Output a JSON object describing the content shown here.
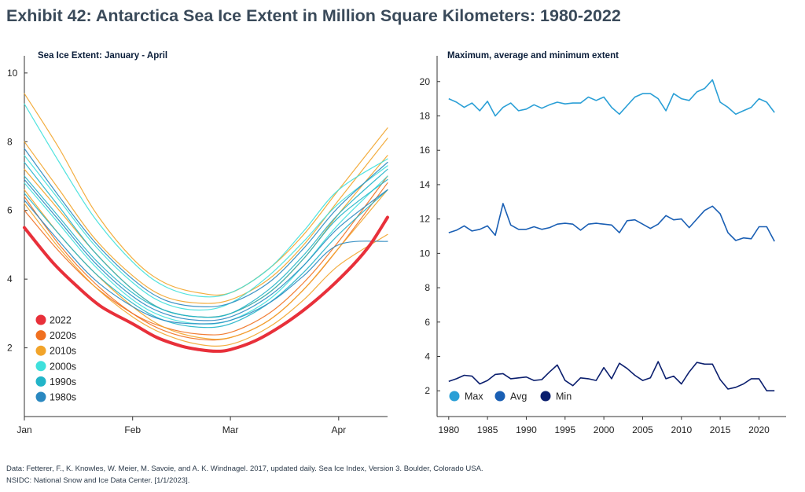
{
  "title": "Exhibit 42: Antarctica Sea Ice Extent in Million Square Kilometers: 1980-2022",
  "source_lines": [
    "Data: Fetterer, F., K. Knowles, W. Meier, M. Savoie, and A. K. Windnagel. 2017, updated daily. Sea Ice Index, Version 3. Boulder, Colorado USA.",
    "NSIDC: National Snow and Ice Data Center. [1/1/2023]."
  ],
  "chart_data": [
    {
      "type": "line",
      "title": "Sea Ice Extent: January - April",
      "xlabel": "",
      "ylabel": "",
      "x_ticks": [
        "Jan",
        "Feb",
        "Mar",
        "Apr"
      ],
      "x_tick_days": [
        0,
        31,
        59,
        90
      ],
      "xlim": [
        0,
        104
      ],
      "ylim": [
        0,
        10.5
      ],
      "y_ticks": [
        2,
        4,
        6,
        8,
        10
      ],
      "legend_position": "bottom-left",
      "legend": [
        {
          "label": "2022",
          "color": "#e8303a"
        },
        {
          "label": "2020s",
          "color": "#f07020"
        },
        {
          "label": "2010s",
          "color": "#f2a42a"
        },
        {
          "label": "2000s",
          "color": "#3fe0dc"
        },
        {
          "label": "1990s",
          "color": "#22b4c8"
        },
        {
          "label": "1980s",
          "color": "#2a88c0"
        }
      ],
      "series": [
        {
          "name": "2022",
          "color": "#e8303a",
          "x": [
            0,
            8,
            15,
            22,
            31,
            38,
            45,
            50,
            55,
            59,
            66,
            73,
            80,
            87,
            94,
            99,
            104
          ],
          "y": [
            5.5,
            4.5,
            3.8,
            3.2,
            2.7,
            2.3,
            2.05,
            1.95,
            1.9,
            1.95,
            2.2,
            2.6,
            3.1,
            3.7,
            4.4,
            5.0,
            5.8
          ]
        },
        {
          "name": "2020s",
          "color": "#f07020",
          "x": [
            0,
            10,
            20,
            31,
            40,
            50,
            59,
            70,
            80,
            90,
            104
          ],
          "y": [
            6.4,
            5.0,
            3.9,
            3.0,
            2.5,
            2.25,
            2.3,
            2.8,
            3.7,
            4.9,
            6.8
          ]
        },
        {
          "name": "2020s",
          "color": "#f07020",
          "x": [
            0,
            10,
            20,
            31,
            40,
            50,
            59,
            70,
            80,
            90,
            104
          ],
          "y": [
            6.0,
            4.8,
            3.8,
            3.0,
            2.6,
            2.4,
            2.45,
            3.0,
            3.9,
            5.1,
            7.0
          ]
        },
        {
          "name": "2010s",
          "color": "#f2a42a",
          "x": [
            0,
            10,
            20,
            31,
            40,
            50,
            59,
            70,
            80,
            90,
            104
          ],
          "y": [
            9.4,
            7.8,
            6.0,
            4.6,
            3.9,
            3.6,
            3.6,
            4.3,
            5.3,
            6.6,
            8.4
          ]
        },
        {
          "name": "2010s",
          "color": "#f2a42a",
          "x": [
            0,
            10,
            20,
            31,
            40,
            50,
            59,
            70,
            80,
            90,
            104
          ],
          "y": [
            8.0,
            6.6,
            5.2,
            4.1,
            3.5,
            3.3,
            3.4,
            4.0,
            5.0,
            6.3,
            8.1
          ]
        },
        {
          "name": "2010s",
          "color": "#f2a42a",
          "x": [
            0,
            10,
            20,
            31,
            40,
            50,
            59,
            70,
            80,
            90,
            104
          ],
          "y": [
            7.2,
            6.0,
            4.8,
            3.7,
            3.1,
            2.9,
            3.0,
            3.6,
            4.6,
            5.9,
            7.6
          ]
        },
        {
          "name": "2010s",
          "color": "#f2a42a",
          "x": [
            0,
            10,
            20,
            31,
            40,
            50,
            59,
            70,
            80,
            90,
            104
          ],
          "y": [
            6.6,
            5.3,
            4.2,
            3.2,
            2.6,
            2.3,
            2.3,
            2.8,
            3.7,
            4.9,
            6.6
          ]
        },
        {
          "name": "2010s",
          "color": "#f2a42a",
          "x": [
            0,
            10,
            20,
            31,
            40,
            50,
            59,
            70,
            80,
            90,
            104
          ],
          "y": [
            6.2,
            4.9,
            3.8,
            2.9,
            2.4,
            2.1,
            2.1,
            2.6,
            3.4,
            4.4,
            5.3
          ]
        },
        {
          "name": "2000s",
          "color": "#3fe0dc",
          "x": [
            0,
            10,
            20,
            31,
            40,
            50,
            59,
            70,
            80,
            90,
            104
          ],
          "y": [
            9.1,
            7.4,
            5.8,
            4.5,
            3.8,
            3.5,
            3.6,
            4.3,
            5.4,
            6.6,
            7.5
          ]
        },
        {
          "name": "2000s",
          "color": "#3fe0dc",
          "x": [
            0,
            10,
            20,
            31,
            40,
            50,
            59,
            70,
            80,
            90,
            104
          ],
          "y": [
            7.6,
            6.3,
            5.0,
            3.9,
            3.3,
            3.1,
            3.3,
            4.1,
            5.1,
            6.2,
            7.3
          ]
        },
        {
          "name": "2000s",
          "color": "#3fe0dc",
          "x": [
            0,
            10,
            20,
            31,
            40,
            50,
            59,
            70,
            80,
            90,
            104
          ],
          "y": [
            6.8,
            5.6,
            4.4,
            3.4,
            2.9,
            2.7,
            2.8,
            3.4,
            4.4,
            5.6,
            7.0
          ]
        },
        {
          "name": "1990s",
          "color": "#22b4c8",
          "x": [
            0,
            10,
            20,
            31,
            40,
            50,
            59,
            70,
            80,
            90,
            104
          ],
          "y": [
            7.4,
            6.1,
            4.8,
            3.7,
            3.1,
            2.9,
            3.0,
            3.7,
            4.7,
            5.9,
            7.2
          ]
        },
        {
          "name": "1990s",
          "color": "#22b4c8",
          "x": [
            0,
            10,
            20,
            31,
            40,
            50,
            59,
            70,
            80,
            90,
            104
          ],
          "y": [
            6.5,
            5.3,
            4.2,
            3.3,
            2.8,
            2.6,
            2.7,
            3.3,
            4.2,
            5.3,
            6.6
          ]
        },
        {
          "name": "1990s",
          "color": "#22b4c8",
          "x": [
            0,
            10,
            20,
            31,
            40,
            50,
            59,
            70,
            80,
            90,
            104
          ],
          "y": [
            7.0,
            5.8,
            4.6,
            3.6,
            3.1,
            2.9,
            3.0,
            3.6,
            4.6,
            5.8,
            6.9
          ]
        },
        {
          "name": "1980s",
          "color": "#2a88c0",
          "x": [
            0,
            10,
            20,
            31,
            40,
            50,
            59,
            70,
            80,
            90,
            104
          ],
          "y": [
            6.9,
            5.7,
            4.5,
            3.5,
            3.0,
            2.8,
            2.9,
            3.5,
            4.4,
            5.5,
            6.6
          ]
        },
        {
          "name": "1980s",
          "color": "#2a88c0",
          "x": [
            0,
            10,
            20,
            31,
            40,
            50,
            59,
            70,
            80,
            90,
            104
          ],
          "y": [
            6.3,
            5.1,
            4.0,
            3.2,
            2.8,
            2.7,
            2.8,
            3.3,
            4.1,
            5.0,
            5.1
          ]
        },
        {
          "name": "1980s",
          "color": "#2a88c0",
          "x": [
            0,
            10,
            20,
            31,
            40,
            50,
            59,
            70,
            80,
            90,
            104
          ],
          "y": [
            7.8,
            6.4,
            5.1,
            4.0,
            3.4,
            3.2,
            3.3,
            3.9,
            4.9,
            6.1,
            7.4
          ]
        }
      ]
    },
    {
      "type": "line",
      "title": "Maximum, average and minimum extent",
      "xlabel": "",
      "ylabel": "",
      "xlim": [
        1978.5,
        2023.5
      ],
      "ylim": [
        0.5,
        21.5
      ],
      "x_ticks": [
        1980,
        1985,
        1990,
        1995,
        2000,
        2005,
        2010,
        2015,
        2020
      ],
      "y_ticks": [
        2,
        4,
        6,
        8,
        10,
        12,
        14,
        16,
        18,
        20
      ],
      "legend_position": "bottom-left",
      "x": [
        1980,
        1981,
        1982,
        1983,
        1984,
        1985,
        1986,
        1987,
        1988,
        1989,
        1990,
        1991,
        1992,
        1993,
        1994,
        1995,
        1996,
        1997,
        1998,
        1999,
        2000,
        2001,
        2002,
        2003,
        2004,
        2005,
        2006,
        2007,
        2008,
        2009,
        2010,
        2011,
        2012,
        2013,
        2014,
        2015,
        2016,
        2017,
        2018,
        2019,
        2020,
        2021,
        2022
      ],
      "series": [
        {
          "name": "Max",
          "color": "#2a9fd6",
          "values": [
            19.0,
            18.8,
            18.5,
            18.75,
            18.3,
            18.85,
            18.0,
            18.5,
            18.75,
            18.3,
            18.4,
            18.65,
            18.45,
            18.65,
            18.8,
            18.7,
            18.75,
            18.75,
            19.1,
            18.9,
            19.1,
            18.5,
            18.1,
            18.6,
            19.1,
            19.3,
            19.3,
            19.0,
            18.3,
            19.3,
            19.0,
            18.9,
            19.4,
            19.6,
            20.1,
            18.8,
            18.5,
            18.1,
            18.3,
            18.5,
            19.0,
            18.8,
            18.2
          ]
        },
        {
          "name": "Avg",
          "color": "#1a5fb4",
          "values": [
            11.2,
            11.35,
            11.6,
            11.3,
            11.4,
            11.6,
            11.05,
            12.9,
            11.65,
            11.4,
            11.4,
            11.55,
            11.4,
            11.5,
            11.7,
            11.75,
            11.7,
            11.35,
            11.7,
            11.75,
            11.7,
            11.65,
            11.2,
            11.9,
            11.95,
            11.7,
            11.45,
            11.7,
            12.2,
            11.95,
            12.0,
            11.5,
            12.0,
            12.5,
            12.75,
            12.3,
            11.2,
            10.75,
            10.9,
            10.85,
            11.55,
            11.55,
            10.7
          ]
        },
        {
          "name": "Min",
          "color": "#0b1f6e",
          "values": [
            2.55,
            2.7,
            2.9,
            2.85,
            2.4,
            2.6,
            2.95,
            3.0,
            2.7,
            2.75,
            2.8,
            2.6,
            2.65,
            3.1,
            3.5,
            2.6,
            2.3,
            2.75,
            2.7,
            2.6,
            3.35,
            2.7,
            3.6,
            3.3,
            2.9,
            2.6,
            2.75,
            3.7,
            2.7,
            2.85,
            2.4,
            3.1,
            3.65,
            3.55,
            3.55,
            2.65,
            2.1,
            2.2,
            2.4,
            2.7,
            2.7,
            2.0,
            2.0
          ]
        }
      ]
    }
  ]
}
